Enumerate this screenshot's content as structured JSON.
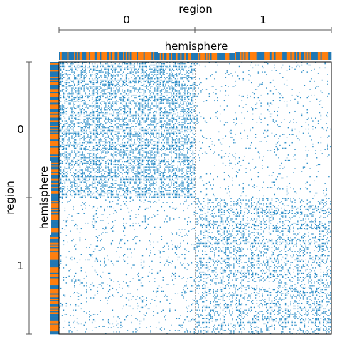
{
  "chart_data": {
    "type": "heatmap",
    "variant": "grouped adjacency matrix",
    "top_axis": {
      "label": "region",
      "tick_labels": [
        "0",
        "1"
      ]
    },
    "left_axis": {
      "label": "region",
      "tick_labels": [
        "0",
        "1"
      ]
    },
    "top_color_bar": {
      "label": "hemisphere"
    },
    "left_color_bar": {
      "label": "hemisphere"
    },
    "groups": [
      "0",
      "1"
    ],
    "group_sizes": [
      100,
      100
    ],
    "block_edge_density": [
      [
        0.45,
        0.06
      ],
      [
        0.08,
        0.28
      ]
    ],
    "hemisphere_fraction_orange": 0.5,
    "grid": false,
    "colors": {
      "edge": "#2f8fc8",
      "hemisphere_a": "#1f77b4",
      "hemisphere_b": "#ff7f0e",
      "block_divider": "#aaaaaa",
      "axis_line": "#555555",
      "frame": "#000000"
    }
  }
}
